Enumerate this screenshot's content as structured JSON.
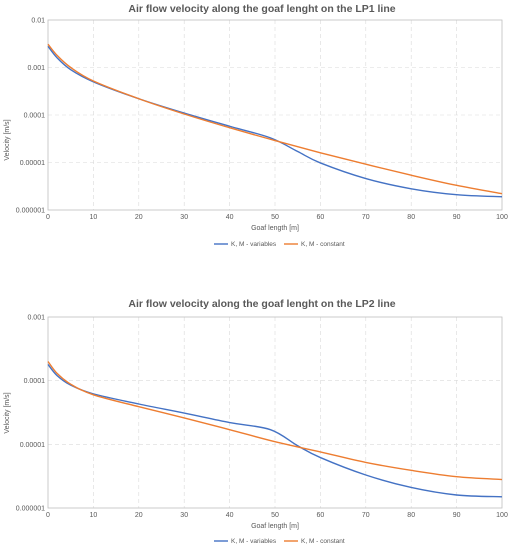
{
  "chart_data": [
    {
      "type": "line",
      "title": "Air flow velocity along the goaf  lenght on the LP1 line",
      "xlabel": "Goaf  length [m]",
      "ylabel": "Velocity [m/s]",
      "xlim": [
        0,
        100
      ],
      "ylim": [
        1e-06,
        0.01
      ],
      "yscale": "log",
      "x_ticks": [
        "0",
        "10",
        "20",
        "30",
        "40",
        "50",
        "60",
        "70",
        "80",
        "90",
        "100"
      ],
      "y_ticks": [
        "0.000001",
        "0.00001",
        "0.0001",
        "0.001",
        "0.01"
      ],
      "grid": true,
      "legend_position": "bottom",
      "series": [
        {
          "name": "K, M - variables",
          "color": "#4472C4",
          "x": [
            0,
            2,
            5,
            10,
            20,
            30,
            40,
            49,
            55,
            60,
            70,
            80,
            90,
            100
          ],
          "y": [
            0.0028,
            0.0016,
            0.0009,
            0.0005,
            0.00022,
            0.00011,
            5.8e-05,
            3.3e-05,
            1.7e-05,
            9.8e-06,
            4.6e-06,
            2.8e-06,
            2.1e-06,
            1.9e-06
          ]
        },
        {
          "name": "K, M - constant",
          "color": "#ED7D31",
          "x": [
            0,
            2,
            5,
            10,
            20,
            30,
            40,
            50,
            60,
            70,
            80,
            90,
            100
          ],
          "y": [
            0.0031,
            0.0018,
            0.001,
            0.00052,
            0.00022,
            0.000105,
            5.4e-05,
            2.9e-05,
            1.6e-05,
            9.2e-06,
            5.4e-06,
            3.3e-06,
            2.2e-06
          ]
        }
      ]
    },
    {
      "type": "line",
      "title": "Air flow velocity along the goaf  lenght on the LP2 line",
      "xlabel": "Goaf  length [m]",
      "ylabel": "Velocity [m/s]",
      "xlim": [
        0,
        100
      ],
      "ylim": [
        1e-06,
        0.001
      ],
      "yscale": "log",
      "x_ticks": [
        "0",
        "10",
        "20",
        "30",
        "40",
        "50",
        "60",
        "70",
        "80",
        "90",
        "100"
      ],
      "y_ticks": [
        "0.000001",
        "0.00001",
        "0.0001",
        "0.001"
      ],
      "grid": true,
      "legend_position": "bottom",
      "series": [
        {
          "name": "K, M - variables",
          "color": "#4472C4",
          "x": [
            0,
            2,
            5,
            10,
            20,
            30,
            40,
            49,
            55,
            60,
            70,
            80,
            90,
            100
          ],
          "y": [
            0.00018,
            0.00012,
            8.5e-05,
            6.2e-05,
            4.3e-05,
            3.1e-05,
            2.2e-05,
            1.7e-05,
            9.5e-06,
            6.2e-06,
            3.3e-06,
            2.1e-06,
            1.6e-06,
            1.5e-06
          ]
        },
        {
          "name": "K, M - constant",
          "color": "#ED7D31",
          "x": [
            0,
            2,
            5,
            10,
            20,
            30,
            40,
            50,
            60,
            70,
            80,
            90,
            100
          ],
          "y": [
            0.0002,
            0.00013,
            8.8e-05,
            6e-05,
            3.9e-05,
            2.6e-05,
            1.7e-05,
            1.1e-05,
            7.6e-06,
            5.2e-06,
            3.9e-06,
            3.1e-06,
            2.8e-06
          ]
        }
      ]
    }
  ]
}
